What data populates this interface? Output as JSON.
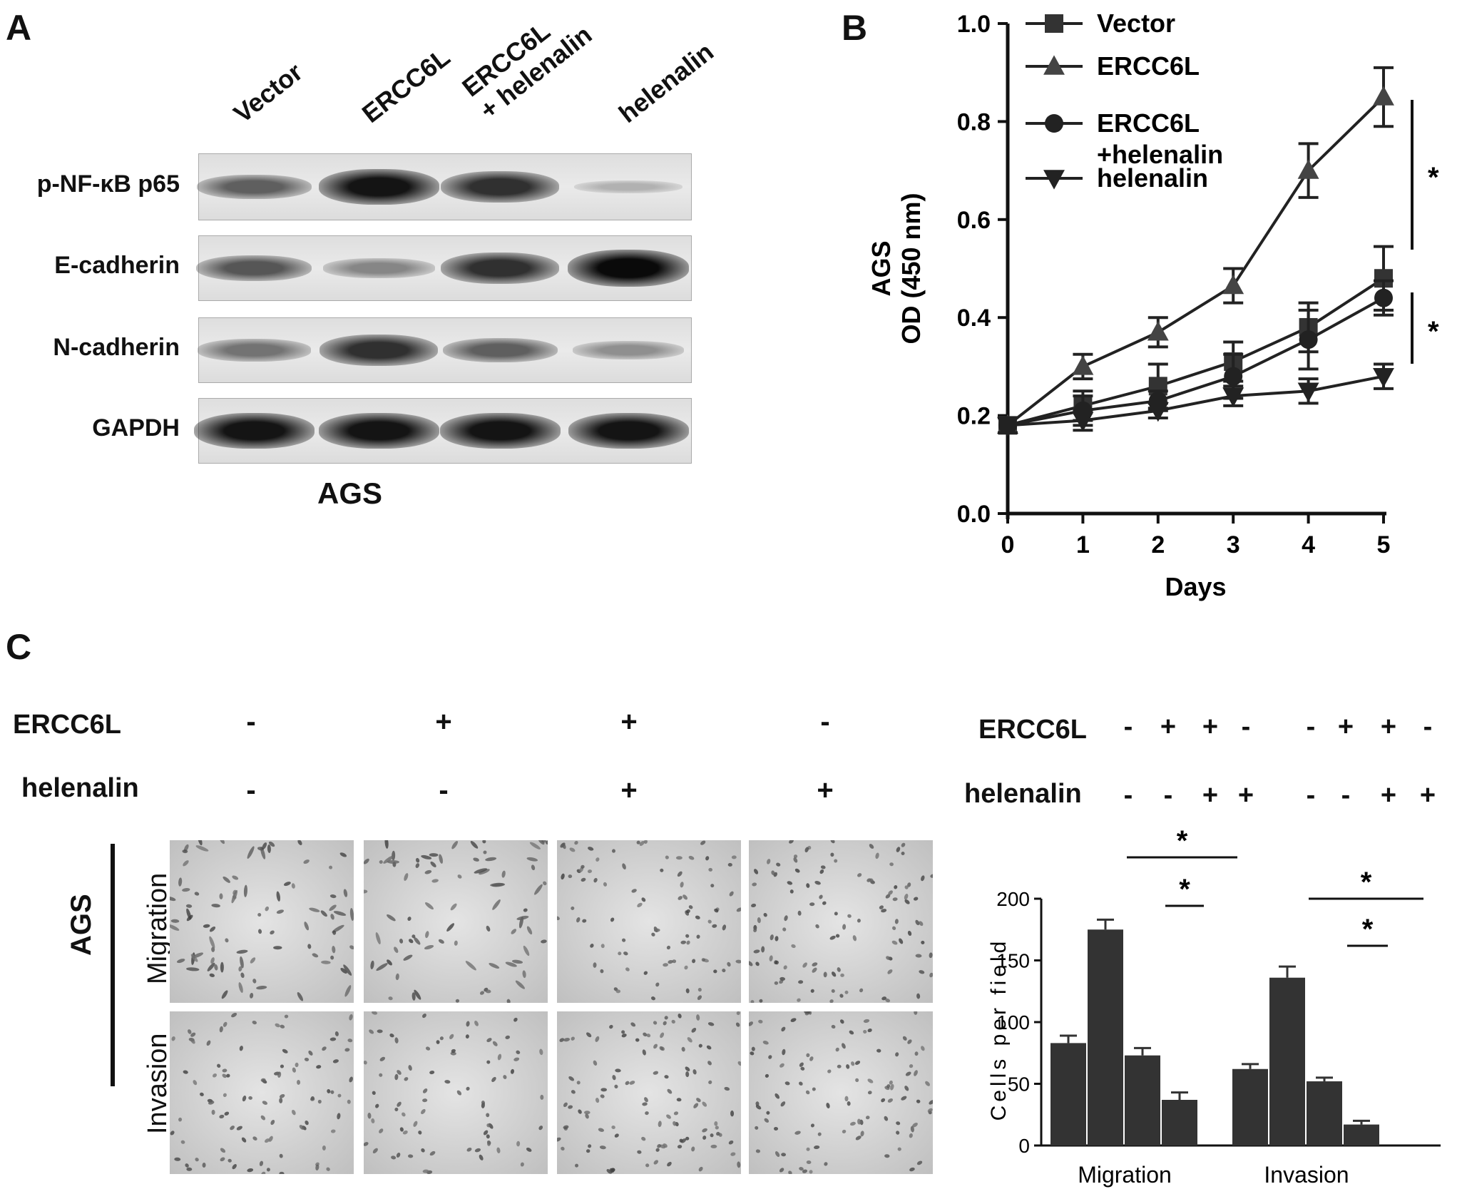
{
  "panels": {
    "a": {
      "letter": "A",
      "lanes": [
        "Vector",
        "ERCC6L",
        "ERCC6L\n+ helenalin",
        "helenalin"
      ],
      "lane_lines": [
        [
          "Vector"
        ],
        [
          "ERCC6L"
        ],
        [
          "ERCC6L",
          "+ helenalin"
        ],
        [
          "helenalin"
        ]
      ],
      "rows": [
        "p-NF-κB p65",
        "E-cadherin",
        "N-cadherin",
        "GAPDH"
      ],
      "cell_line": "AGS",
      "band_intensity": [
        [
          0.55,
          0.95,
          0.8,
          0.12
        ],
        [
          0.6,
          0.35,
          0.8,
          1.0
        ],
        [
          0.45,
          0.8,
          0.55,
          0.3
        ],
        [
          0.95,
          0.95,
          0.95,
          0.95
        ]
      ]
    },
    "b": {
      "letter": "B"
    },
    "c": {
      "letter": "C",
      "left_labels": {
        "ercc6l": "ERCC6L",
        "helenalin": "helenalin"
      },
      "ercc6l_signs": [
        "-",
        "+",
        "+",
        "-"
      ],
      "helenalin_signs": [
        "-",
        "-",
        "+",
        "+"
      ],
      "side_labels": {
        "cell_line": "AGS",
        "migration": "Migration",
        "invasion": "Invasion"
      },
      "right_labels": {
        "ercc6l": "ERCC6L",
        "helenalin": "helenalin"
      },
      "right_ercc6l_signs": [
        "-",
        "+",
        "+",
        "-",
        "-",
        "+",
        "+",
        "-"
      ],
      "right_helenalin_signs": [
        "-",
        "-",
        "+",
        "+",
        "-",
        "-",
        "+",
        "+"
      ],
      "significance": "*"
    }
  },
  "chart_data": [
    {
      "type": "line",
      "x": [
        0,
        1,
        2,
        3,
        4,
        5
      ],
      "xlabel": "Days",
      "ylabel_lines": [
        "AGS",
        "OD (450 nm)"
      ],
      "ylim": [
        0,
        1.0
      ],
      "yticks": [
        "0.0",
        "0.2",
        "0.4",
        "0.6",
        "0.8",
        "1.0"
      ],
      "xticks": [
        "0",
        "1",
        "2",
        "3",
        "4",
        "5"
      ],
      "legend_placement": "top-left",
      "significance_labels": [
        "*",
        "*"
      ],
      "series": [
        {
          "name": "Vector",
          "marker": "square",
          "values": [
            0.18,
            0.22,
            0.26,
            0.31,
            0.38,
            0.48
          ],
          "errors": [
            0.015,
            0.03,
            0.045,
            0.04,
            0.05,
            0.065
          ]
        },
        {
          "name": "ERCC6L",
          "marker": "triangle-up",
          "values": [
            0.18,
            0.3,
            0.37,
            0.465,
            0.7,
            0.85
          ],
          "errors": [
            0.015,
            0.025,
            0.03,
            0.035,
            0.055,
            0.06
          ]
        },
        {
          "name": "ERCC6L\n+helenalin",
          "legend_lines": [
            "ERCC6L",
            "+helenalin"
          ],
          "marker": "circle",
          "values": [
            0.18,
            0.21,
            0.23,
            0.28,
            0.355,
            0.44
          ],
          "errors": [
            0.015,
            0.03,
            0.02,
            0.045,
            0.06,
            0.035
          ]
        },
        {
          "name": "helenalin",
          "marker": "triangle-down",
          "values": [
            0.18,
            0.19,
            0.21,
            0.24,
            0.25,
            0.28
          ],
          "errors": [
            0.015,
            0.02,
            0.015,
            0.02,
            0.025,
            0.025
          ]
        }
      ]
    },
    {
      "type": "bar",
      "categories": [
        "Migration",
        "Invasion"
      ],
      "ylabel": "Cells per field",
      "ylim": [
        0,
        200
      ],
      "yticks": [
        "0",
        "50",
        "100",
        "150",
        "200"
      ],
      "significance_labels": [
        "*",
        "*",
        "*",
        "*"
      ],
      "series": [
        {
          "values": [
            83,
            62
          ],
          "errors": [
            6,
            4
          ]
        },
        {
          "values": [
            175,
            136
          ],
          "errors": [
            8,
            9
          ]
        },
        {
          "values": [
            73,
            52
          ],
          "errors": [
            6,
            3
          ]
        },
        {
          "values": [
            37,
            17
          ],
          "errors": [
            6,
            3
          ]
        }
      ]
    }
  ]
}
